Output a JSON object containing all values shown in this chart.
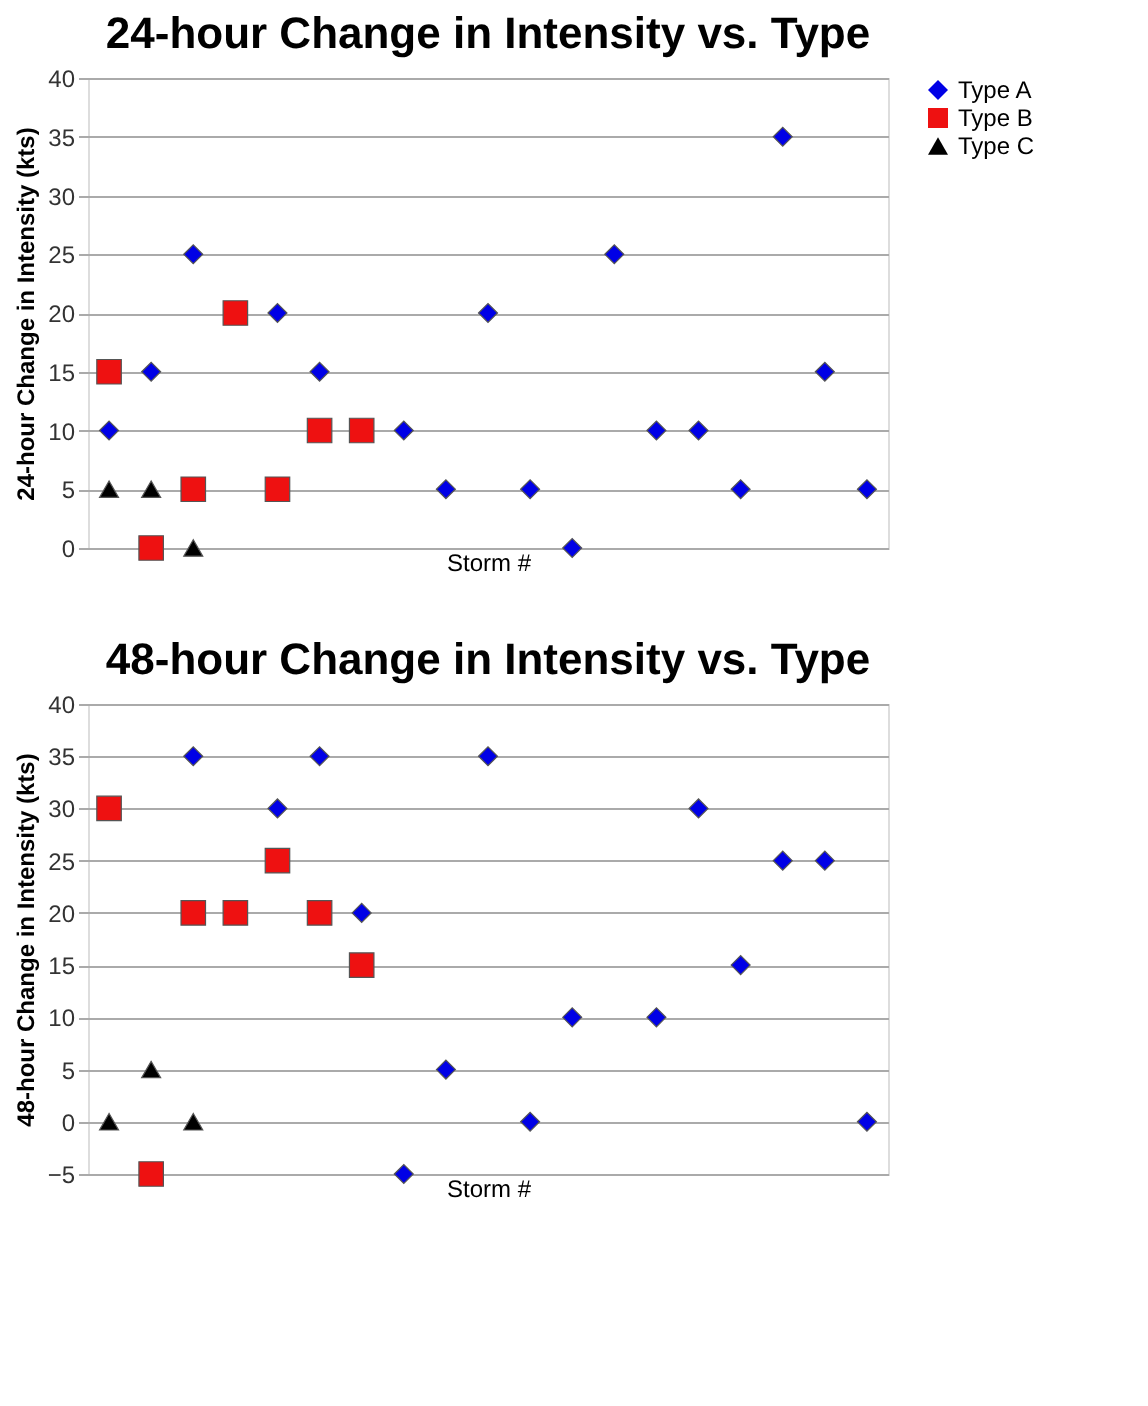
{
  "chart_data": [
    {
      "type": "scatter",
      "title": "24-hour Change in Intensity vs. Type",
      "xlabel": "Storm #",
      "ylabel": "24-hour Change in Intensity (kts)",
      "categories": [
        null,
        null,
        null,
        null,
        null,
        null,
        null,
        null,
        null,
        null,
        null,
        null,
        null,
        null,
        null,
        null,
        null,
        null,
        null
      ],
      "series": [
        {
          "name": "Type A",
          "color": "#0000e6",
          "marker": "diamond",
          "values": [
            10,
            15,
            25,
            null,
            20,
            15,
            null,
            10,
            5,
            20,
            5,
            0,
            25,
            10,
            10,
            5,
            35,
            15,
            5
          ]
        },
        {
          "name": "Type B",
          "color": "#ee1111",
          "marker": "square",
          "values": [
            15,
            0,
            5,
            20,
            5,
            10,
            10,
            null,
            null,
            null,
            null,
            null,
            null,
            null,
            null,
            null,
            null,
            null,
            null
          ]
        },
        {
          "name": "Type C",
          "color": "#000000",
          "marker": "triangle",
          "values": [
            5,
            5,
            0,
            null,
            null,
            null,
            null,
            null,
            null,
            null,
            null,
            null,
            null,
            null,
            null,
            null,
            null,
            null,
            null
          ]
        }
      ],
      "ylim": [
        0,
        40
      ],
      "yticks": [
        0,
        5,
        10,
        15,
        20,
        25,
        30,
        35,
        40
      ],
      "grid": "y",
      "legend": "right",
      "tick_labels": "y"
    },
    {
      "type": "scatter",
      "title": "48-hour Change in Intensity vs. Type",
      "xlabel": "Storm #",
      "ylabel": "48-hour Change in Intensity (kts)",
      "categories": [
        null,
        null,
        null,
        null,
        null,
        null,
        null,
        null,
        null,
        null,
        null,
        null,
        null,
        null,
        null,
        null,
        null,
        null,
        null
      ],
      "series": [
        {
          "name": "Type A",
          "color": "#0000e6",
          "marker": "diamond",
          "values": [
            null,
            null,
            35,
            null,
            30,
            35,
            20,
            -5,
            5,
            35,
            0,
            10,
            null,
            10,
            30,
            15,
            25,
            25,
            0
          ]
        },
        {
          "name": "Type B",
          "color": "#ee1111",
          "marker": "square",
          "values": [
            30,
            -5,
            20,
            20,
            25,
            20,
            15,
            null,
            null,
            null,
            null,
            null,
            null,
            null,
            null,
            null,
            null,
            null,
            null
          ]
        },
        {
          "name": "Type C",
          "color": "#000000",
          "marker": "triangle",
          "values": [
            0,
            5,
            0,
            null,
            null,
            null,
            null,
            null,
            null,
            null,
            null,
            null,
            null,
            null,
            null,
            null,
            null,
            null,
            null
          ]
        }
      ],
      "ylim": [
        -5,
        40
      ],
      "yticks": [
        -5,
        0,
        5,
        10,
        15,
        20,
        25,
        30,
        35,
        40
      ],
      "grid": "y",
      "legend": "right",
      "tick_labels": "y"
    }
  ]
}
